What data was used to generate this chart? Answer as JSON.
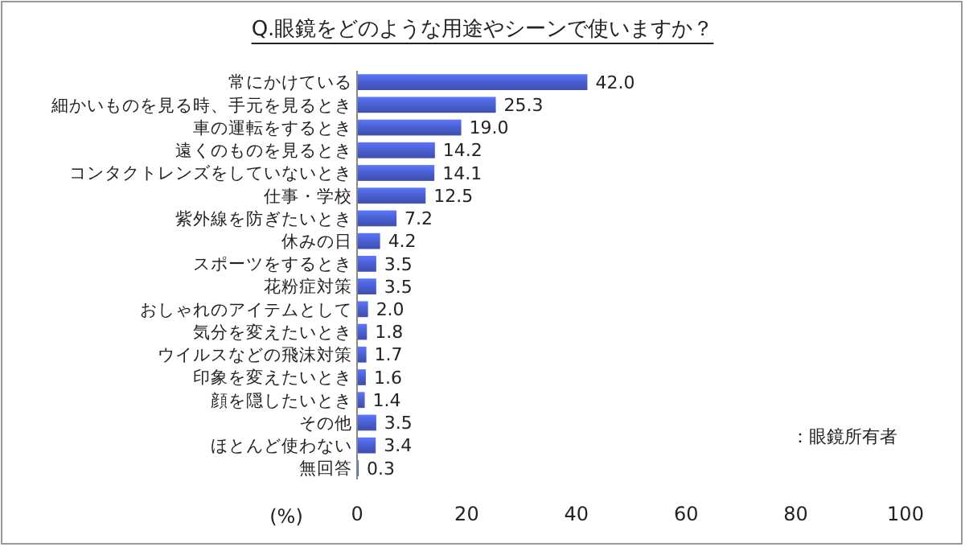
{
  "chart_data": {
    "type": "bar",
    "orientation": "horizontal",
    "title": "Q.眼鏡をどのような用途やシーンで使いますか？",
    "xlabel": "(%)",
    "categories": [
      "常にかけている",
      "細かいものを見る時、手元を見るとき",
      "車の運転をするとき",
      "遠くのものを見るとき",
      "コンタクトレンズをしていないとき",
      "仕事・学校",
      "紫外線を防ぎたいとき",
      "休みの日",
      "スポーツをするとき",
      "花粉症対策",
      "おしゃれのアイテムとして",
      "気分を変えたいとき",
      "ウイルスなどの飛沫対策",
      "印象を変えたいとき",
      "顔を隠したいとき",
      "その他",
      "ほとんど使わない",
      "無回答"
    ],
    "values": [
      42.0,
      25.3,
      19.0,
      14.2,
      14.1,
      12.5,
      7.2,
      4.2,
      3.5,
      3.5,
      2.0,
      1.8,
      1.7,
      1.6,
      1.4,
      3.5,
      3.4,
      0.3
    ],
    "value_labels": [
      "42.0",
      "25.3",
      "19.0",
      "14.2",
      "14.1",
      "12.5",
      "7.2",
      "4.2",
      "3.5",
      "3.5",
      "2.0",
      "1.8",
      "1.7",
      "1.6",
      "1.4",
      "3.5",
      "3.4",
      "0.3"
    ],
    "color": "#4a5fd0",
    "xlim": [
      0,
      100
    ],
    "xticks": [
      0,
      20,
      40,
      60,
      80,
      100
    ],
    "annotations": [
      "：眼鏡所有者"
    ]
  }
}
